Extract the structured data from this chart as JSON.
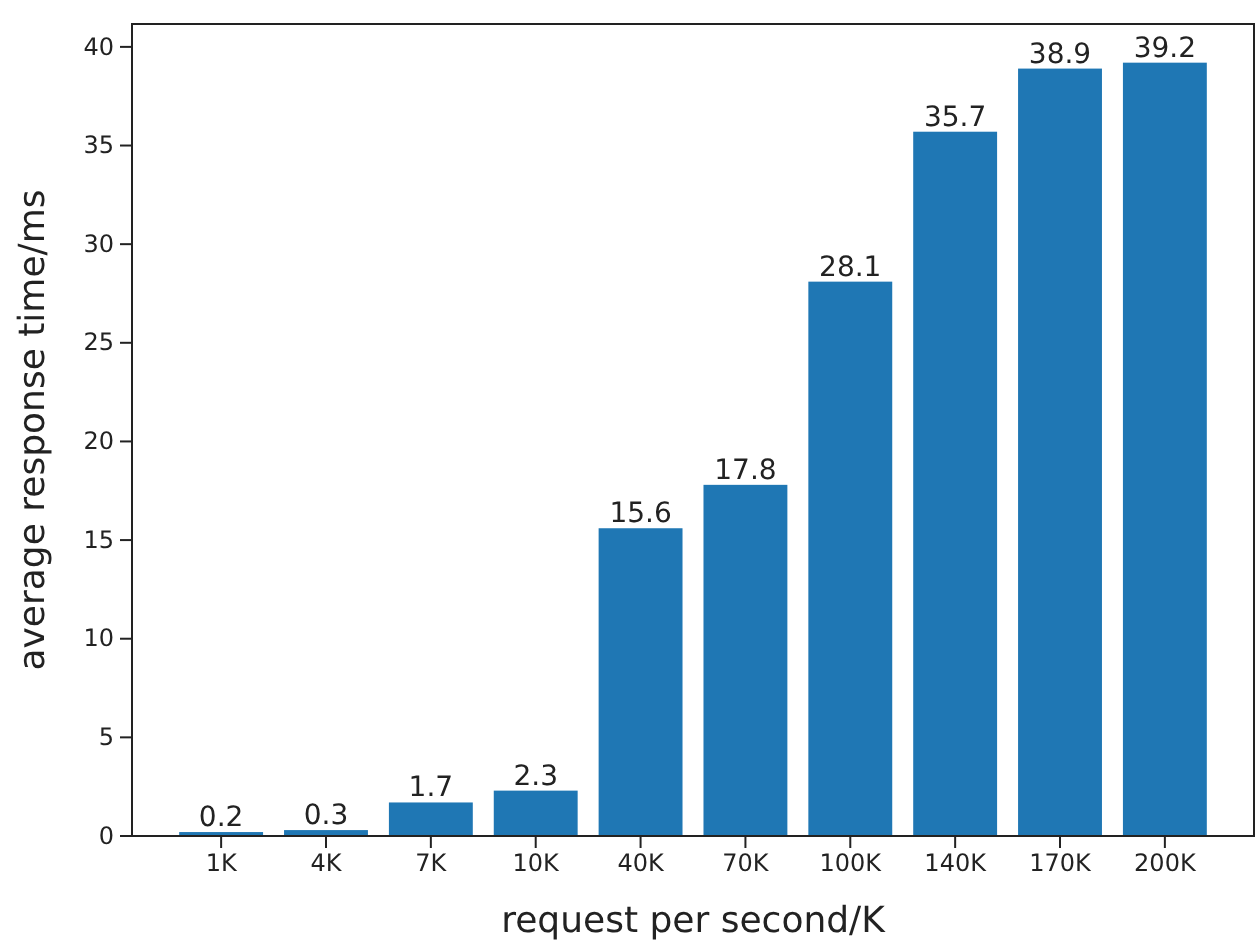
{
  "chart_data": {
    "type": "bar",
    "xlabel": "request per second/K",
    "ylabel": "average response time/ms",
    "categories": [
      "1K",
      "4K",
      "7K",
      "10K",
      "40K",
      "70K",
      "100K",
      "140K",
      "170K",
      "200K"
    ],
    "values": [
      0.2,
      0.3,
      1.7,
      2.3,
      15.6,
      17.8,
      28.1,
      35.7,
      38.9,
      39.2
    ],
    "color": "#1f77b4",
    "ylim": [
      0,
      41.16
    ],
    "yticks": [
      0,
      5,
      10,
      15,
      20,
      25,
      30,
      35,
      40
    ],
    "grid": false,
    "data_labels": true
  }
}
